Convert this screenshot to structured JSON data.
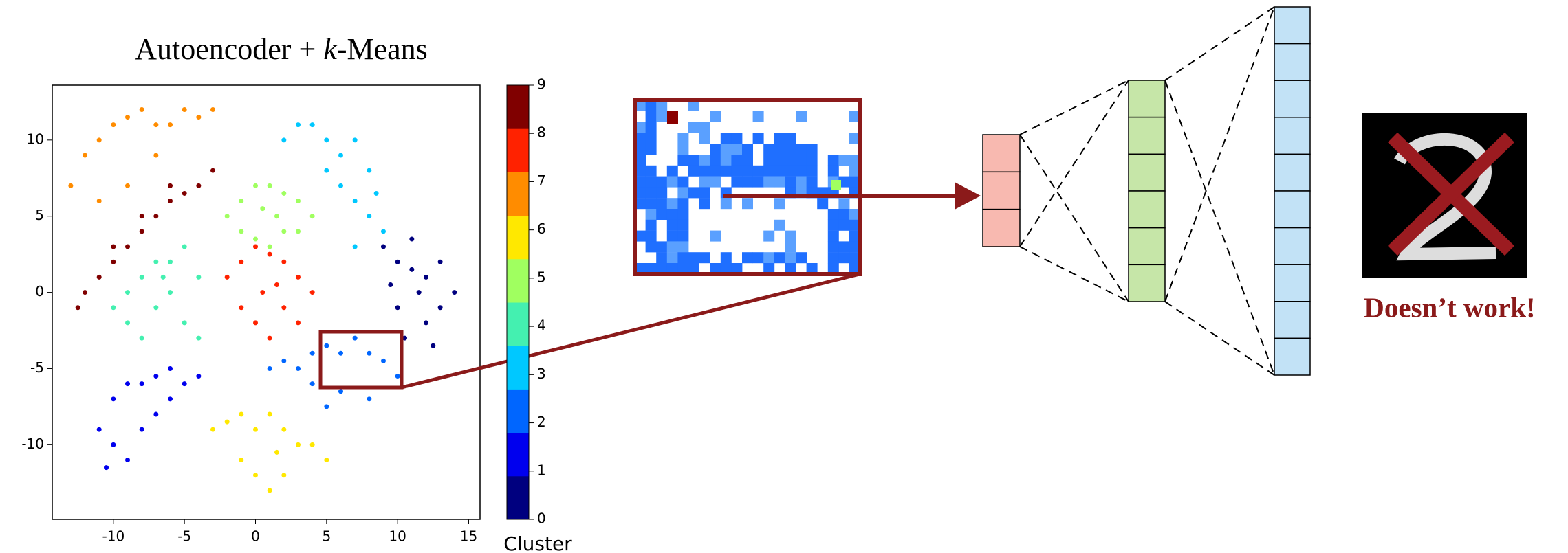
{
  "chart_data": {
    "type": "scatter",
    "title": [
      "Autoencoder + ",
      "k",
      "-Means"
    ],
    "xlim": [
      -14.3,
      15.8
    ],
    "ylim": [
      -14.9,
      13.6
    ],
    "xticks": [
      -10,
      -5,
      0,
      5,
      10,
      15
    ],
    "yticks": [
      -10,
      -5,
      0,
      5,
      10
    ],
    "colorbar": {
      "label": "Cluster",
      "ticks": [
        0,
        1,
        2,
        3,
        4,
        5,
        6,
        7,
        8,
        9
      ],
      "lim": [
        0,
        9
      ]
    },
    "series": [
      {
        "color": "#00007f",
        "x": [
          9,
          10,
          11,
          12,
          13,
          14,
          10,
          12,
          9.5,
          11.5,
          13,
          10.5,
          12.5,
          11
        ],
        "values": [
          3,
          2,
          3.5,
          1,
          2,
          0,
          -1,
          -2,
          0.5,
          0,
          -1,
          -3,
          -3.5,
          1.5
        ]
      },
      {
        "color": "#0000ee",
        "x": [
          -11,
          -10,
          -9,
          -8,
          -7,
          -6,
          -5,
          -4,
          -10,
          -9,
          -8,
          -7,
          -6,
          -10.5
        ],
        "values": [
          -9,
          -7,
          -6,
          -6,
          -5.5,
          -5,
          -6,
          -5.5,
          -10,
          -11,
          -9,
          -8,
          -7,
          -11.5
        ]
      },
      {
        "color": "#0066ff",
        "x": [
          1,
          2,
          3,
          4,
          5,
          6,
          7,
          8,
          9,
          10,
          4,
          6,
          8,
          5
        ],
        "values": [
          -5,
          -4.5,
          -5,
          -4,
          -3.5,
          -4,
          -3,
          -4,
          -4.5,
          -5.5,
          -6,
          -6.5,
          -7,
          -7.5
        ]
      },
      {
        "color": "#00c8ff",
        "x": [
          2,
          3,
          4,
          5,
          6,
          7,
          8,
          6,
          7,
          8,
          9,
          5,
          7,
          8.5
        ],
        "values": [
          10,
          11,
          11,
          10,
          9,
          10,
          8,
          7,
          6,
          5,
          4,
          8,
          3,
          6.5
        ]
      },
      {
        "color": "#44f0b0",
        "x": [
          -10,
          -9,
          -8,
          -7,
          -6,
          -5,
          -4,
          -9,
          -8,
          -7,
          -6,
          -5,
          -4,
          -6.5
        ],
        "values": [
          -1,
          0,
          1,
          2,
          2,
          3,
          1,
          -2,
          -3,
          -1,
          0,
          -2,
          -3,
          1
        ]
      },
      {
        "color": "#a0ff60",
        "x": [
          -2,
          -1,
          0,
          1,
          2,
          3,
          4,
          -1,
          0,
          1,
          2,
          3,
          0.5,
          1.5
        ],
        "values": [
          5,
          6,
          7,
          7,
          6.5,
          6,
          5,
          4,
          3.5,
          3,
          4,
          4,
          5.5,
          5
        ]
      },
      {
        "color": "#ffe800",
        "x": [
          -3,
          -2,
          -1,
          0,
          1,
          2,
          3,
          4,
          5,
          -1,
          0,
          1,
          2,
          1.5
        ],
        "values": [
          -9,
          -8.5,
          -8,
          -9,
          -8,
          -9,
          -10,
          -10,
          -11,
          -11,
          -12,
          -13,
          -12,
          -10.5
        ]
      },
      {
        "color": "#ff8c00",
        "x": [
          -13,
          -12,
          -11,
          -10,
          -9,
          -8,
          -7,
          -6,
          -5,
          -4,
          -3,
          -11,
          -9,
          -7
        ],
        "values": [
          7,
          9,
          10,
          11,
          11.5,
          12,
          11,
          11,
          12,
          11.5,
          12,
          6,
          7,
          9
        ]
      },
      {
        "color": "#ff2200",
        "x": [
          -2,
          -1,
          0,
          1,
          2,
          3,
          4,
          -1,
          0,
          1,
          2,
          3,
          0.5,
          1.5
        ],
        "values": [
          1,
          2,
          3,
          2.5,
          2,
          1,
          0,
          -1,
          -2,
          -3,
          -1,
          -2,
          0,
          0.5
        ]
      },
      {
        "color": "#800000",
        "x": [
          -12,
          -11,
          -10,
          -9,
          -8,
          -7,
          -6,
          -5,
          -4,
          -3,
          -12.5,
          -10,
          -8,
          -6
        ],
        "values": [
          0,
          1,
          2,
          3,
          4,
          5,
          6,
          6.5,
          7,
          8,
          -1,
          3,
          5,
          7
        ]
      }
    ]
  },
  "annotation": "Doesn’t work!"
}
